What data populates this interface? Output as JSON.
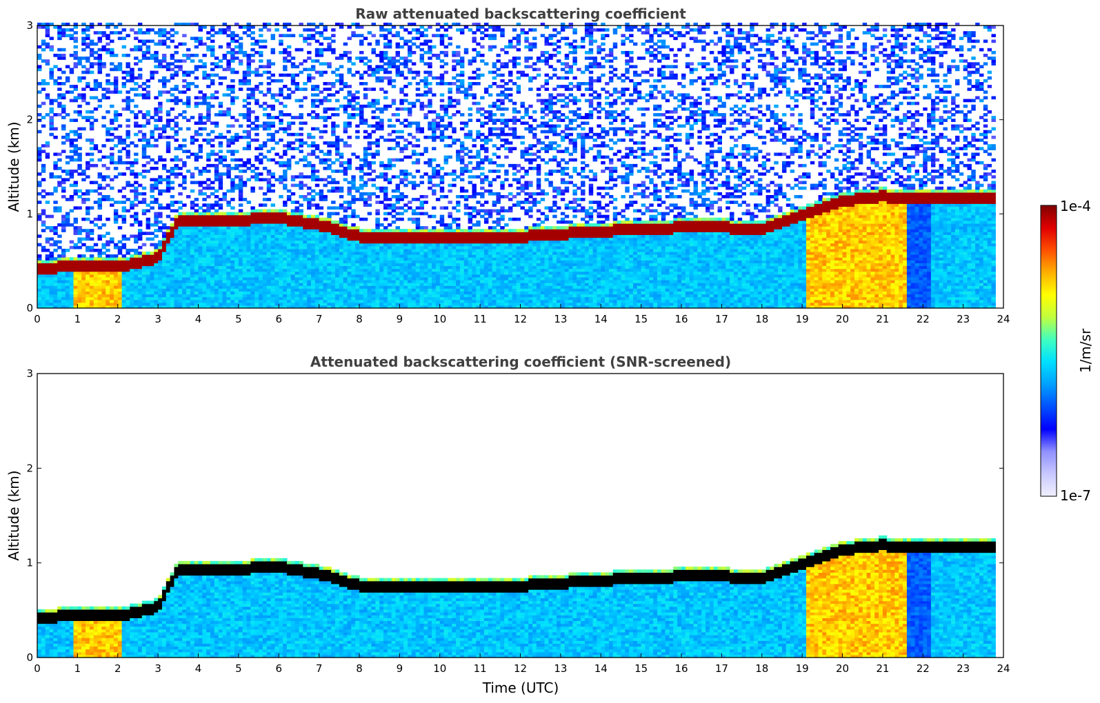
{
  "chart_data": [
    {
      "type": "heatmap",
      "title": "Raw attenuated backscattering coefficient",
      "xlabel": "",
      "ylabel": "Altitude (km)",
      "xlim": [
        0,
        24
      ],
      "ylim": [
        0,
        3
      ],
      "xticks": [
        "0",
        "1",
        "2",
        "3",
        "4",
        "5",
        "6",
        "7",
        "8",
        "9",
        "10",
        "11",
        "12",
        "13",
        "14",
        "15",
        "16",
        "17",
        "18",
        "19",
        "20",
        "21",
        "22",
        "23",
        "24"
      ],
      "yticks": [
        "0",
        "1",
        "2",
        "3"
      ],
      "layer_top_km": {
        "time_utc": [
          0,
          1,
          2,
          2.3,
          3,
          3.5,
          4,
          5,
          6,
          7,
          8,
          9,
          10,
          11,
          12,
          13,
          14,
          15,
          16,
          17,
          18,
          19,
          20,
          21,
          21.6,
          22.2,
          23,
          23.8
        ],
        "values": [
          0.47,
          0.52,
          0.5,
          0.52,
          0.6,
          1.0,
          1.0,
          1.0,
          1.02,
          0.95,
          0.82,
          0.8,
          0.8,
          0.8,
          0.82,
          0.85,
          0.88,
          0.9,
          0.92,
          0.92,
          0.9,
          1.05,
          1.2,
          1.25,
          1.22,
          1.22,
          1.22,
          1.22
        ]
      },
      "noise_above_layer": true
    },
    {
      "type": "heatmap",
      "title": "Attenuated backscattering coefficient (SNR-screened)",
      "xlabel": "Time (UTC)",
      "ylabel": "Altitude (km)",
      "xlim": [
        0,
        24
      ],
      "ylim": [
        0,
        3
      ],
      "xticks": [
        "0",
        "1",
        "2",
        "3",
        "4",
        "5",
        "6",
        "7",
        "8",
        "9",
        "10",
        "11",
        "12",
        "13",
        "14",
        "15",
        "16",
        "17",
        "18",
        "19",
        "20",
        "21",
        "22",
        "23",
        "24"
      ],
      "yticks": [
        "0",
        "1",
        "2",
        "3"
      ],
      "saturated_color": "#000000",
      "noise_above_layer": false
    }
  ],
  "colorbar": {
    "label": "1/m/sr",
    "max_label": "1e-4",
    "min_label": "1e-7",
    "colors": [
      "#f0f0ff",
      "#c8c8ff",
      "#9090ff",
      "#0000ff",
      "#0050ff",
      "#00a0ff",
      "#00e0ff",
      "#40ffc0",
      "#c0ff40",
      "#ffff00",
      "#ffb000",
      "#ff5000",
      "#e00000",
      "#800000"
    ]
  }
}
